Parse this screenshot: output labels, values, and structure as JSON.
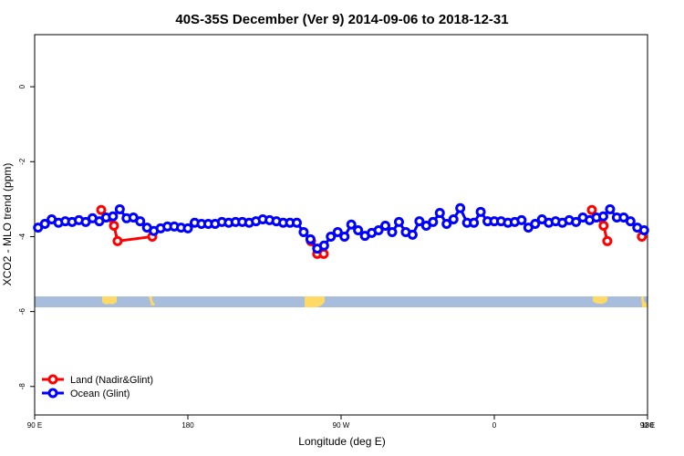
{
  "chart_data": {
    "type": "line",
    "title": "40S-35S December (Ver 9)   2014-09-06 to 2018-12-31",
    "x_label": "Longitude (deg E)",
    "y_label": "XCO2 - MLO trend (ppm)",
    "xlim": [
      90,
      450
    ],
    "xticks": [
      {
        "value": 90,
        "label": "90 E"
      },
      180,
      {
        "value": 270,
        "label": "90 W"
      },
      {
        "value": 360,
        "label": "0"
      },
      {
        "value": 450,
        "label": "90 E"
      },
      {
        "value": 540,
        "label": "180"
      }
    ],
    "ylim": [
      -8.76,
      1.39
    ],
    "yticks": [
      0,
      -2,
      -4,
      -6,
      -8
    ],
    "legend": "bottomleft",
    "series": [
      {
        "name": "Land (Nadir&Glint)",
        "color": "#ff0000",
        "x": [
          129.1,
          136.6,
          138.7,
          159.1,
          200,
          252.3,
          256,
          259.8,
          330,
          417.3,
          424.2,
          426.4,
          440,
          446.7
        ],
        "values": [
          -3.29,
          -3.71,
          -4.12,
          -4.0,
          null,
          -4.12,
          -4.46,
          -4.46,
          null,
          -3.29,
          -3.71,
          -4.12,
          null,
          -4.0
        ]
      },
      {
        "name": "Ocean (Glint)",
        "color": "#0000ff",
        "x": [
          92,
          96,
          100,
          104,
          108,
          112,
          116,
          120,
          124,
          128,
          132,
          136,
          140,
          144,
          148,
          152,
          156,
          160,
          164,
          168,
          172,
          176,
          180,
          184,
          188,
          192,
          196,
          200,
          204,
          208,
          212,
          216,
          220,
          224,
          228,
          232,
          236,
          240,
          244,
          248,
          252,
          256,
          260,
          264,
          268,
          272,
          276,
          280,
          284,
          288,
          292,
          296,
          300,
          304,
          308,
          312,
          316,
          320,
          324,
          328,
          332,
          336,
          340,
          344,
          348,
          352,
          356,
          360,
          364,
          368,
          372,
          376,
          380,
          384,
          388,
          392,
          396,
          400,
          404,
          408,
          412,
          416,
          420,
          424,
          428,
          432,
          436,
          440,
          444,
          448
        ],
        "values": [
          -3.76,
          -3.66,
          -3.54,
          -3.63,
          -3.59,
          -3.61,
          -3.56,
          -3.61,
          -3.51,
          -3.59,
          -3.49,
          -3.46,
          -3.27,
          -3.51,
          -3.49,
          -3.59,
          -3.76,
          -3.85,
          -3.78,
          -3.73,
          -3.73,
          -3.76,
          -3.78,
          -3.63,
          -3.66,
          -3.66,
          -3.66,
          -3.61,
          -3.63,
          -3.61,
          -3.61,
          -3.63,
          -3.59,
          -3.54,
          -3.56,
          -3.59,
          -3.63,
          -3.63,
          -3.63,
          -3.88,
          -4.07,
          -4.32,
          -4.24,
          -4.0,
          -3.88,
          -4.0,
          -3.68,
          -3.83,
          -3.98,
          -3.9,
          -3.83,
          -3.71,
          -3.88,
          -3.61,
          -3.88,
          -3.95,
          -3.59,
          -3.71,
          -3.61,
          -3.37,
          -3.66,
          -3.54,
          -3.24,
          -3.63,
          -3.63,
          -3.34,
          -3.59,
          -3.59,
          -3.59,
          -3.63,
          -3.61,
          -3.56,
          -3.76,
          -3.66,
          -3.54,
          -3.63,
          -3.59,
          -3.63,
          -3.56,
          -3.61,
          -3.49,
          -3.56,
          -3.49,
          -3.46,
          -3.27,
          -3.49,
          -3.49,
          -3.59,
          -3.76,
          -3.83
        ]
      }
    ]
  }
}
